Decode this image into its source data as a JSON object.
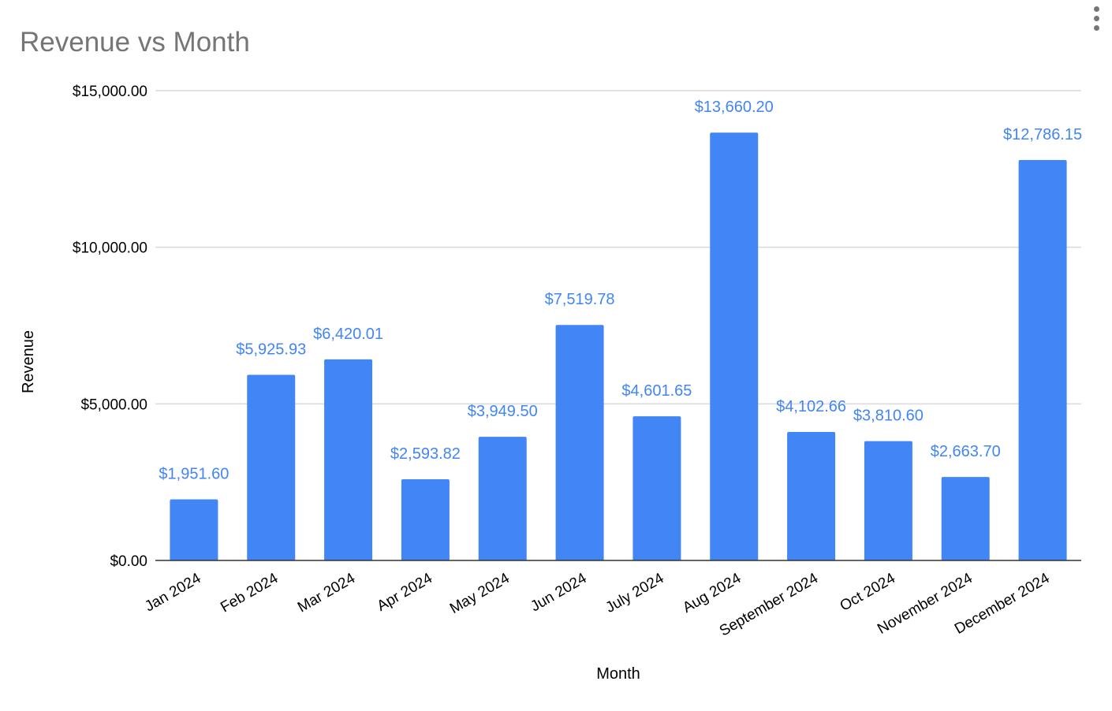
{
  "chart_data": {
    "type": "bar",
    "title": "Revenue vs Month",
    "xlabel": "Month",
    "ylabel": "Revenue",
    "categories": [
      "Jan 2024",
      "Feb 2024",
      "Mar 2024",
      "Apr 2024",
      "May 2024",
      "Jun 2024",
      "July 2024",
      "Aug 2024",
      "September 2024",
      "Oct 2024",
      "November 2024",
      "December 2024"
    ],
    "values": [
      1951.6,
      5925.93,
      6420.01,
      2593.82,
      3949.5,
      7519.78,
      4601.65,
      13660.2,
      4102.66,
      3810.6,
      2663.7,
      12786.15
    ],
    "data_labels": [
      "$1,951.60",
      "$5,925.93",
      "$6,420.01",
      "$2,593.82",
      "$3,949.50",
      "$7,519.78",
      "$4,601.65",
      "$13,660.20",
      "$4,102.66",
      "$3,810.60",
      "$2,663.70",
      "$12,786.15"
    ],
    "yticks": [
      0,
      5000,
      10000,
      15000
    ],
    "ytick_labels": [
      "$0.00",
      "$5,000.00",
      "$10,000.00",
      "$15,000.00"
    ],
    "ylim": [
      0,
      15000
    ],
    "grid": true,
    "legend": "none",
    "colors": {
      "bar": "#4285f4",
      "data_label": "#4285f4",
      "gridline": "#d9d9d9",
      "baseline": "#333333",
      "title": "#757575"
    }
  },
  "menu": {
    "icon": "more-vert-icon"
  }
}
